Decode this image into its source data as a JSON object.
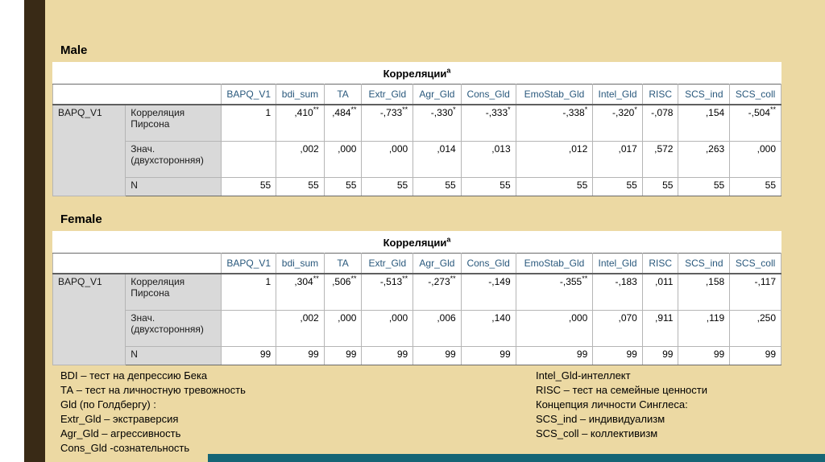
{
  "slide": {
    "background_color": "#ecd9a3",
    "left_edge_color": "#ffffff",
    "left_stripe_color": "#392a16",
    "bottom_bar_color": "#156575",
    "table_header_text_color": "#29587c",
    "stub_bg_color": "#d9d9d9"
  },
  "sections": [
    {
      "label": "Male",
      "table": {
        "title": "Корреляции",
        "title_sup": "a",
        "stub": "BAPQ_V1",
        "columns": [
          "BAPQ_V1",
          "bdi_sum",
          "TA",
          "Extr_Gld",
          "Agr_Gld",
          "Cons_Gld",
          "EmoStab_Gld",
          "Intel_Gld",
          "RISC",
          "SCS_ind",
          "SCS_coll"
        ],
        "rows": [
          {
            "label": "Корреляция Пирсона",
            "values": [
              "1",
              ",410**",
              ",484**",
              "-,733**",
              "-,330*",
              "-,333*",
              "-,338*",
              "-,320*",
              "-,078",
              ",154",
              "-,504**"
            ]
          },
          {
            "label": "Знач. (двухсторонняя)",
            "values": [
              "",
              ",002",
              ",000",
              ",000",
              ",014",
              ",013",
              ",012",
              ",017",
              ",572",
              ",263",
              ",000"
            ]
          },
          {
            "label": "N",
            "values": [
              "55",
              "55",
              "55",
              "55",
              "55",
              "55",
              "55",
              "55",
              "55",
              "55",
              "55"
            ]
          }
        ]
      }
    },
    {
      "label": "Female",
      "table": {
        "title": "Корреляции",
        "title_sup": "a",
        "stub": "BAPQ_V1",
        "columns": [
          "BAPQ_V1",
          "bdi_sum",
          "TA",
          "Extr_Gld",
          "Agr_Gld",
          "Cons_Gld",
          "EmoStab_Gld",
          "Intel_Gld",
          "RISC",
          "SCS_ind",
          "SCS_coll"
        ],
        "rows": [
          {
            "label": "Корреляция Пирсона",
            "values": [
              "1",
              ",304**",
              ",506**",
              "-,513**",
              "-,273**",
              "-,149",
              "-,355**",
              "-,183",
              ",011",
              ",158",
              "-,117"
            ]
          },
          {
            "label": "Знач. (двухсторонняя)",
            "values": [
              "",
              ",002",
              ",000",
              ",000",
              ",006",
              ",140",
              ",000",
              ",070",
              ",911",
              ",119",
              ",250"
            ]
          },
          {
            "label": "N",
            "values": [
              "99",
              "99",
              "99",
              "99",
              "99",
              "99",
              "99",
              "99",
              "99",
              "99",
              "99"
            ]
          }
        ]
      }
    }
  ],
  "footnotes": {
    "left": [
      "BDI – тест на депрессию Бека",
      "ТА – тест на личностную тревожность",
      "Gld (по Голдбергу) :",
      "Extr_Gld – экстраверсия",
      "Agr_Gld – агрессивность",
      "Cons_Gld -сознательность"
    ],
    "right": [
      "Intel_Gld-интеллект",
      "RISC – тест на семейные ценности",
      "Концепция личности Синглеса:",
      "SCS_ind – индивидуализм",
      "SCS_coll – коллективизм"
    ]
  }
}
